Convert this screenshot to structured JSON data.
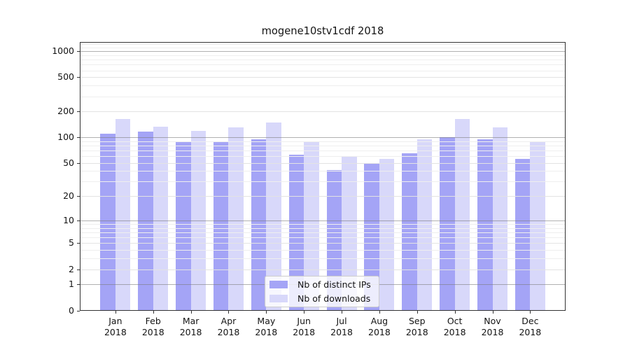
{
  "figure": {
    "title": "mogene10stv1cdf 2018"
  },
  "chart_data": {
    "type": "bar",
    "title": "mogene10stv1cdf 2018",
    "categories": [
      "Jan",
      "Feb",
      "Mar",
      "Apr",
      "May",
      "Jun",
      "Jul",
      "Aug",
      "Sep",
      "Oct",
      "Nov",
      "Dec"
    ],
    "category_sublabel": "2018",
    "series": [
      {
        "name": "Nb of distinct IPs",
        "color": "#a4a4f6",
        "values": [
          111,
          117,
          88,
          90,
          95,
          62,
          41,
          50,
          65,
          100,
          95,
          56
        ]
      },
      {
        "name": "Nb of downloads",
        "color": "#d8d8fa",
        "values": [
          164,
          134,
          119,
          130,
          150,
          90,
          60,
          56,
          94,
          164,
          130,
          90
        ]
      }
    ],
    "xlabel": "",
    "ylabel": "",
    "yscale": "log1p",
    "yticks": [
      0,
      1,
      2,
      5,
      10,
      20,
      50,
      100,
      200,
      500,
      1000
    ],
    "ylim": [
      0,
      1280
    ],
    "grid": true,
    "legend_position": "lower center",
    "colors": {
      "decade_gridline": "rgba(125,125,125,0.6)",
      "labeled_gridline": "#e3e3e3",
      "minor_gridline": "#eeeeee"
    }
  }
}
